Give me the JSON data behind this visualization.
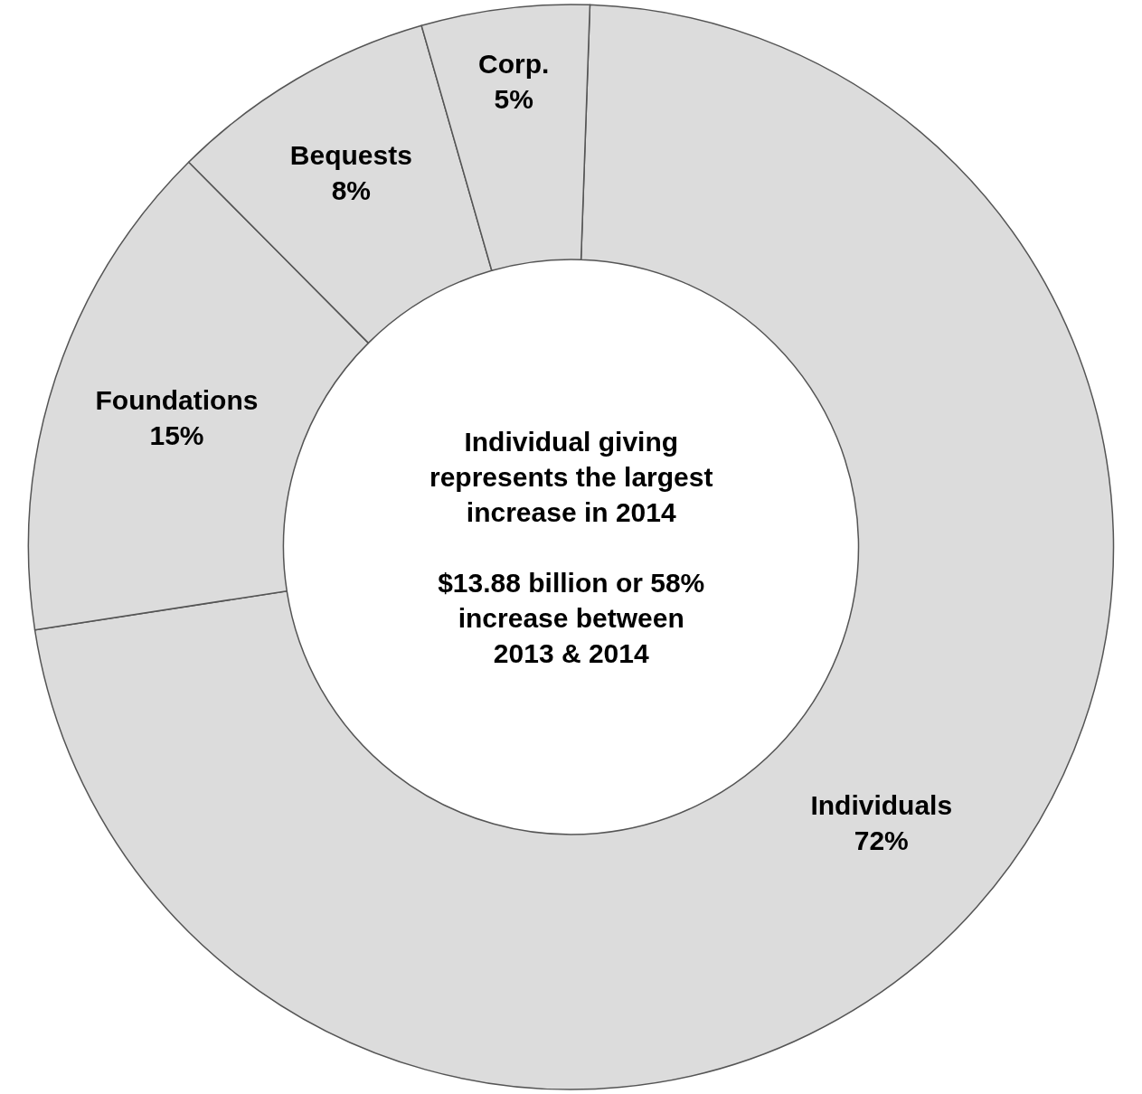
{
  "chart_data": {
    "type": "donut",
    "categories": [
      "Individuals",
      "Foundations",
      "Bequests",
      "Corp."
    ],
    "values": [
      72,
      15,
      8,
      5
    ],
    "value_labels": [
      "72%",
      "15%",
      "8%",
      "5%"
    ],
    "colors": [
      "#dcdcdc",
      "#dcdcdc",
      "#dcdcdc",
      "#dcdcdc"
    ],
    "annotations": [
      "Individual giving\nrepresents the largest\nincrease in 2014",
      "$13.88 billion or 58%\nincrease between\n2013 & 2014"
    ],
    "legend": false
  }
}
